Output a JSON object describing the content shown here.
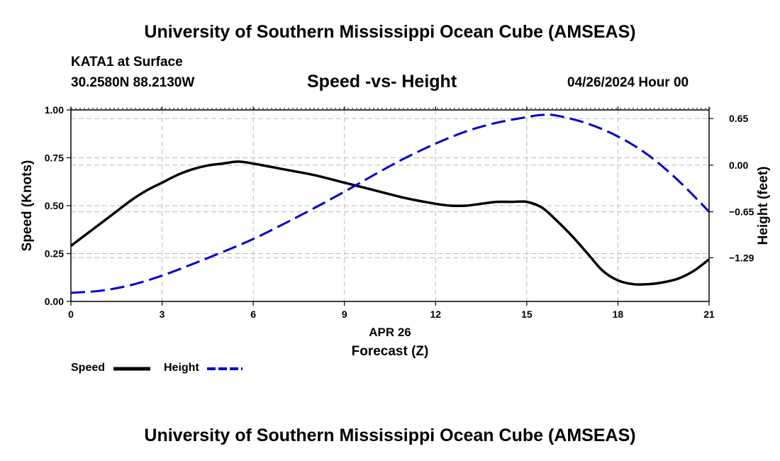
{
  "header": {
    "title": "University of Southern Mississippi Ocean Cube (AMSEAS)",
    "station": "KATA1 at Surface",
    "coords": "30.2580N  88.2130W",
    "subtitle": "Speed -vs- Height",
    "datetime": "04/26/2024 Hour 00",
    "footer_title": "University of Southern Mississippi Ocean Cube (AMSEAS)"
  },
  "legend": {
    "speed_label": "Speed",
    "height_label": "Height"
  },
  "colors": {
    "speed": "#000000",
    "height": "#0000cc",
    "grid": "#bbbbbb"
  },
  "chart_data": {
    "type": "line",
    "title": "Speed -vs- Height",
    "xlabel": "Forecast (Z)",
    "xlabel_date": "APR 26",
    "ylabel": "Speed (Knots)",
    "y2label": "Height (feet)",
    "xlim": [
      0,
      21
    ],
    "ylim": [
      0,
      1
    ],
    "y2lim": [
      -1.9,
      0.77
    ],
    "x_ticks": [
      0,
      3,
      6,
      9,
      12,
      15,
      18,
      21
    ],
    "x_tick_labels": [
      "0",
      "3",
      "6",
      "9",
      "12",
      "15",
      "18",
      "21"
    ],
    "y_ticks": [
      0,
      0.25,
      0.5,
      0.75,
      1.0
    ],
    "y_tick_labels": [
      "0.00",
      "0.25",
      "0.50",
      "0.75",
      "1.00"
    ],
    "y2_ticks": [
      0.65,
      0.0,
      -0.65,
      -1.29
    ],
    "y2_tick_labels": [
      "0.65",
      "0.00",
      "−0.65",
      "−1.29"
    ],
    "grid": true,
    "legend_position": "bottom-left",
    "series": [
      {
        "name": "Speed",
        "axis": "left",
        "style": "solid",
        "x": [
          0,
          0.5,
          1,
          1.5,
          2,
          2.5,
          3,
          3.5,
          4,
          4.5,
          5,
          5.5,
          6,
          7,
          8,
          9,
          10,
          11,
          12,
          12.5,
          13,
          13.5,
          14,
          14.5,
          15,
          15.5,
          16,
          16.5,
          17,
          17.5,
          18,
          18.5,
          19,
          19.5,
          20,
          20.5,
          21
        ],
        "values": [
          0.29,
          0.35,
          0.41,
          0.47,
          0.53,
          0.58,
          0.62,
          0.66,
          0.69,
          0.71,
          0.72,
          0.73,
          0.72,
          0.69,
          0.66,
          0.62,
          0.58,
          0.54,
          0.51,
          0.5,
          0.5,
          0.51,
          0.52,
          0.52,
          0.52,
          0.49,
          0.42,
          0.34,
          0.25,
          0.16,
          0.11,
          0.09,
          0.09,
          0.1,
          0.12,
          0.16,
          0.22
        ]
      },
      {
        "name": "Height",
        "axis": "right",
        "style": "dashed",
        "x": [
          0,
          1,
          2,
          3,
          4,
          5,
          6,
          7,
          8,
          9,
          10,
          11,
          12,
          13,
          14,
          15,
          15.5,
          16,
          17,
          18,
          19,
          20,
          21
        ],
        "values": [
          -1.78,
          -1.75,
          -1.67,
          -1.54,
          -1.38,
          -1.21,
          -1.03,
          -0.82,
          -0.6,
          -0.37,
          -0.13,
          0.1,
          0.3,
          0.47,
          0.59,
          0.67,
          0.7,
          0.69,
          0.58,
          0.4,
          0.14,
          -0.22,
          -0.65
        ]
      }
    ]
  }
}
